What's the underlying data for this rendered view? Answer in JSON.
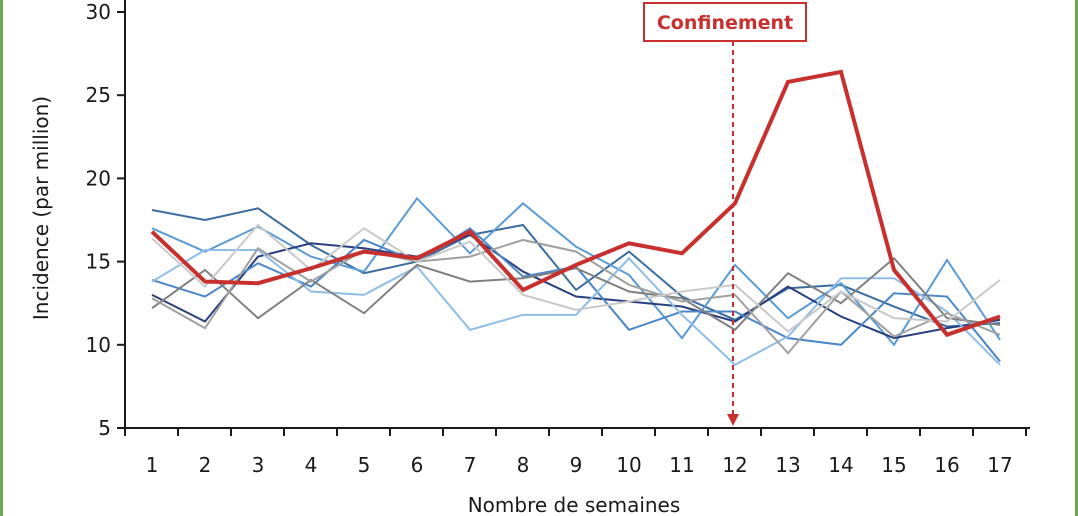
{
  "colors": {
    "frame": "#6aa84f",
    "highlight": "#c8302e",
    "axis": "#1a1a1a"
  },
  "chart_data": {
    "type": "line",
    "title": "",
    "xlabel": "Nombre de semaines",
    "ylabel": "Incidence (par million)",
    "x": [
      1,
      2,
      3,
      4,
      5,
      6,
      7,
      8,
      9,
      10,
      11,
      12,
      13,
      14,
      15,
      16,
      17
    ],
    "x_tick_labels": [
      "1",
      "2",
      "3",
      "4",
      "5",
      "6",
      "7",
      "8",
      "9",
      "10",
      "11",
      "12",
      "13",
      "14",
      "15",
      "16",
      "17"
    ],
    "ylim": [
      5,
      30
    ],
    "y_ticks": [
      5,
      10,
      15,
      20,
      25,
      30
    ],
    "y_tick_labels": [
      "5",
      "10",
      "15",
      "20",
      "25",
      "30"
    ],
    "grid": false,
    "series": [
      {
        "color": "#3b6e9e",
        "values": [
          18.1,
          17.5,
          18.2,
          16.0,
          14.3,
          15.0,
          16.6,
          17.2,
          13.3,
          15.6,
          12.9,
          11.5,
          13.4,
          13.6,
          12.3,
          11.1,
          11.3
        ]
      },
      {
        "color": "#5a9bd5",
        "values": [
          17.0,
          15.6,
          17.1,
          15.3,
          14.4,
          18.8,
          15.5,
          18.5,
          15.9,
          14.2,
          10.4,
          14.8,
          11.6,
          13.7,
          10.0,
          15.1,
          10.3
        ]
      },
      {
        "color": "#2a3f7e",
        "values": [
          13.0,
          11.4,
          15.3,
          16.1,
          15.8,
          15.3,
          16.6,
          14.4,
          12.9,
          12.6,
          12.3,
          11.4,
          13.5,
          11.7,
          10.4,
          11.0,
          11.5
        ]
      },
      {
        "color": "#4a86c8",
        "values": [
          13.9,
          12.9,
          14.9,
          13.5,
          16.3,
          15.0,
          17.0,
          14.1,
          14.7,
          10.9,
          12.0,
          12.0,
          10.4,
          10.0,
          13.1,
          12.9,
          9.0
        ]
      },
      {
        "color": "#8fbde8",
        "values": [
          13.8,
          15.7,
          15.7,
          13.2,
          13.0,
          14.7,
          10.9,
          11.8,
          11.8,
          15.2,
          11.8,
          8.8,
          10.5,
          14.0,
          14.0,
          12.0,
          8.8
        ]
      },
      {
        "color": "#808080",
        "values": [
          12.2,
          14.5,
          11.6,
          13.9,
          11.9,
          14.8,
          13.8,
          14.0,
          14.6,
          13.2,
          12.8,
          10.9,
          14.3,
          12.5,
          15.2,
          11.6,
          11.2
        ]
      },
      {
        "color": "#a0a0a0",
        "values": [
          12.8,
          11.0,
          15.8,
          13.8,
          15.7,
          15.0,
          15.3,
          16.3,
          15.6,
          13.6,
          12.6,
          13.0,
          9.5,
          13.2,
          10.5,
          11.9,
          10.6
        ]
      },
      {
        "color": "#c9c9c9",
        "values": [
          16.4,
          13.5,
          17.2,
          14.5,
          17.0,
          15.0,
          16.2,
          13.0,
          12.1,
          12.6,
          13.2,
          13.6,
          10.8,
          13.2,
          11.6,
          11.4,
          13.9
        ]
      },
      {
        "color": "#c8302e",
        "highlight": true,
        "values": [
          16.8,
          13.8,
          13.7,
          14.6,
          15.6,
          15.2,
          16.8,
          13.3,
          14.8,
          16.1,
          15.5,
          18.5,
          25.8,
          26.4,
          14.5,
          10.6,
          11.7
        ]
      }
    ],
    "annotations": [
      {
        "text": "Confinement",
        "x": 12,
        "style": "dashed-arrow"
      }
    ]
  }
}
